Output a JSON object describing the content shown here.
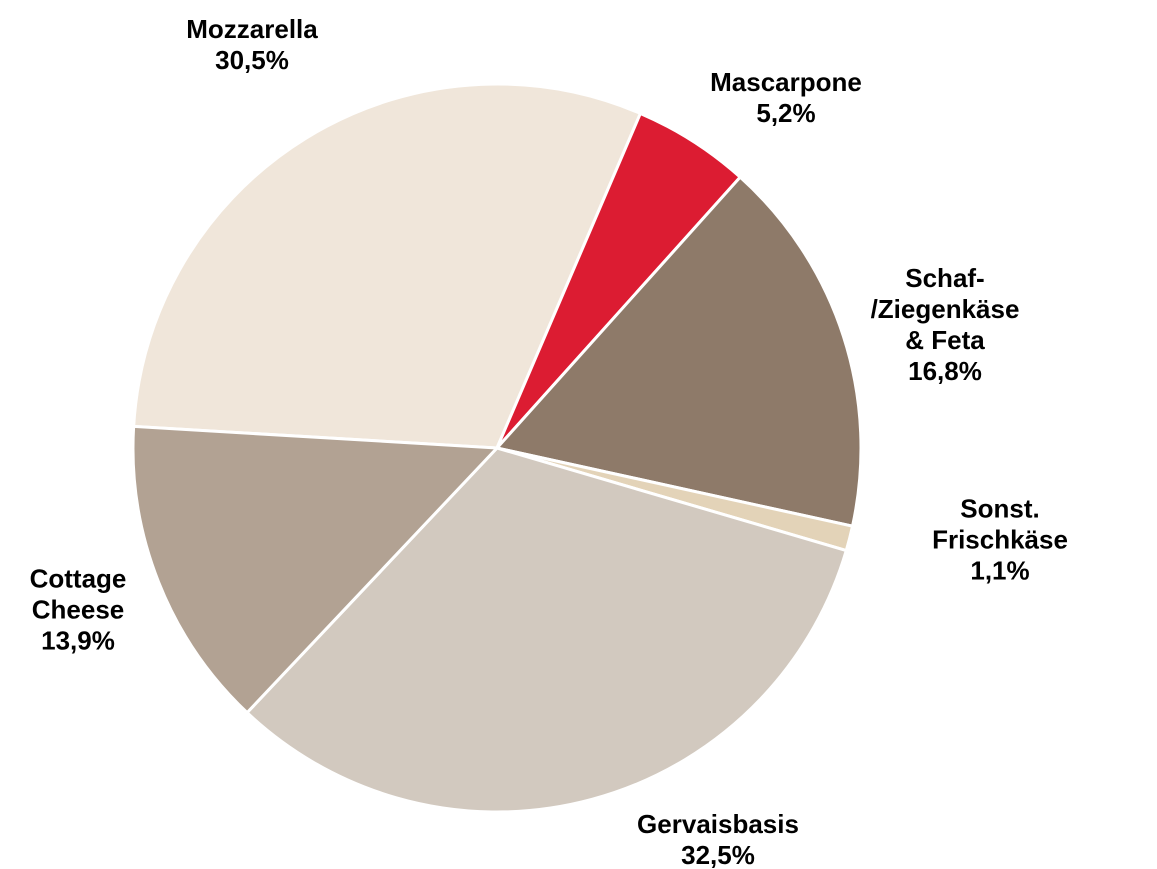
{
  "chart_data": {
    "type": "pie",
    "categories": [
      "Mozzarella",
      "Mascarpone",
      "Schaf-\n/Ziegenkäse\n& Feta",
      "Sonst. Frischkäse",
      "Gervaisbasis",
      "Cottage\nCheese"
    ],
    "values": [
      30.5,
      5.2,
      16.8,
      1.1,
      32.5,
      13.9
    ],
    "value_labels": [
      "30,5%",
      "5,2%",
      "16,8%",
      "1,1%",
      "32,5%",
      "13,9%"
    ],
    "colors": [
      "#f0e6da",
      "#dc1c32",
      "#8e7a69",
      "#e3d3b8",
      "#d2c9bf",
      "#b2a293"
    ]
  }
}
